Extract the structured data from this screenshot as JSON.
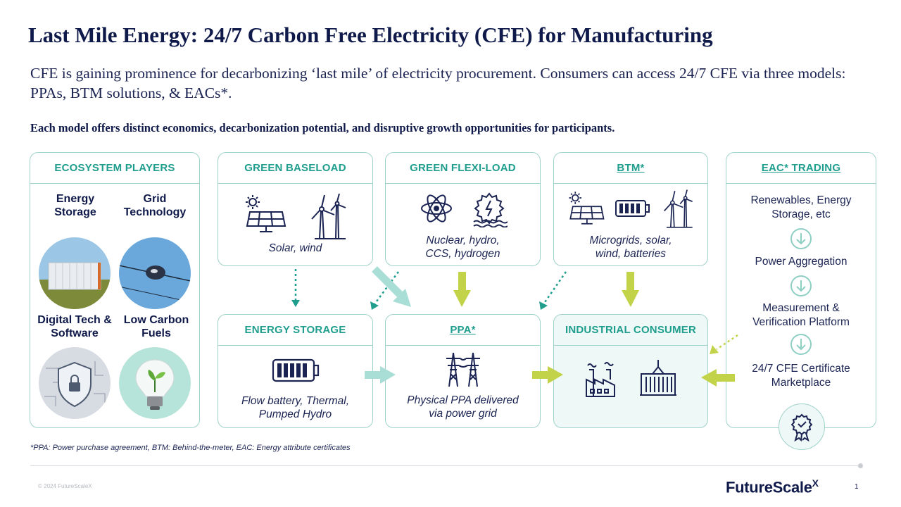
{
  "title": "Last Mile Energy: 24/7 Carbon Free Electricity (CFE) for Manufacturing",
  "subtitle": "CFE is gaining prominence for decarbonizing ‘last mile’ of electricity procurement. Consumers can access 24/7 CFE via three models: PPAs, BTM solutions, & EACs*.",
  "tagline": "Each model offers distinct economics, decarbonization potential, and disruptive growth opportunities for participants.",
  "ecosystem": {
    "heading": "ECOSYSTEM PLAYERS",
    "players": [
      {
        "label": "Energy Storage",
        "icon": "battery-container-photo"
      },
      {
        "label": "Grid Technology",
        "icon": "grid-sensor-photo"
      },
      {
        "label": "Digital Tech & Software",
        "icon": "digital-shield-photo"
      },
      {
        "label": "Low Carbon Fuels",
        "icon": "plant-bulb-photo"
      }
    ]
  },
  "green_baseload": {
    "heading": "GREEN BASELOAD",
    "caption": "Solar, wind",
    "icons": [
      "solar-panel-icon",
      "wind-turbine-icon"
    ]
  },
  "green_flexi": {
    "heading": "GREEN FLEXI-LOAD",
    "caption_line1": "Nuclear, hydro,",
    "caption_line2": "CCS, hydrogen",
    "icons": [
      "atom-icon",
      "hydro-gear-icon"
    ]
  },
  "btm": {
    "heading": "BTM*",
    "caption_line1": "Microgrids, solar,",
    "caption_line2": "wind, batteries",
    "icons": [
      "solar-panel-icon",
      "battery-icon",
      "wind-turbine-icon"
    ]
  },
  "energy_storage": {
    "heading": "ENERGY STORAGE",
    "caption_line1": "Flow battery, Thermal,",
    "caption_line2": "Pumped Hydro",
    "icons": [
      "battery-icon"
    ]
  },
  "ppa": {
    "heading": "PPA*",
    "caption_line1": "Physical PPA delivered",
    "caption_line2": "via power grid",
    "icons": [
      "transmission-tower-icon"
    ]
  },
  "industrial": {
    "heading": "INDUSTRIAL CONSUMER",
    "icons": [
      "factory-icon",
      "shipping-container-icon"
    ]
  },
  "eac": {
    "heading": "EAC* TRADING",
    "step1": "Renewables, Energy Storage, etc",
    "step2": "Power Aggregation",
    "step3_line1": "Measurement &",
    "step3_line2": "Verification Platform",
    "step4_line1": "24/7 CFE Certificate",
    "step4_line2": "Marketplace",
    "icon": "certificate-badge-icon"
  },
  "footnote": "*PPA: Power purchase agreement, BTM: Behind-the-meter, EAC: Energy attribute certificates",
  "copyright": "© 2024 FutureScaleX",
  "brand": "FutureScale",
  "brand_suffix": "X",
  "page_number": "1",
  "colors": {
    "navy": "#0f1a4a",
    "teal": "#1f9e8e",
    "border": "#9fd3c9",
    "arrow_teal": "#a9ded6",
    "arrow_lime": "#c2d34a"
  }
}
